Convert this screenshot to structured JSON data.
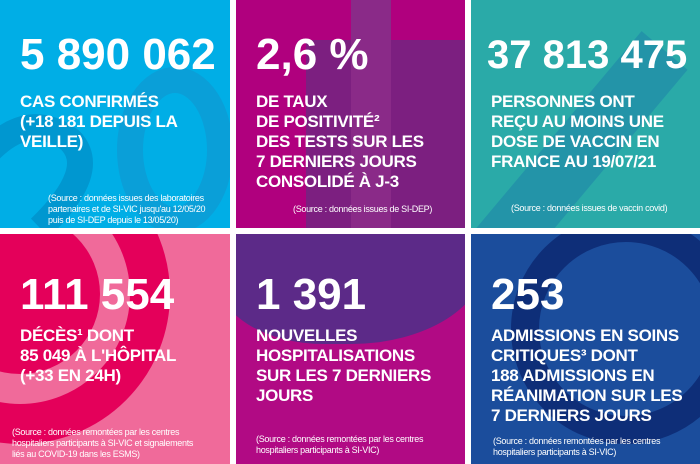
{
  "panels": [
    {
      "value": "5 890 062",
      "label": "CAS CONFIRMÉS\n(+18 181 DEPUIS LA\nVEILLE)",
      "source": "(Source : données issues des laboratoires\npartenaires et de SI-VIC jusqu'au 12/05/20\npuis de SI-DEP depuis le 13/05/20)",
      "color": "#00aee6"
    },
    {
      "value": "2,6 %",
      "label": "DE TAUX\nDE POSITIVITÉ²\nDES TESTS SUR LES\n7 DERNIERS JOURS\nCONSOLIDÉ À J-3",
      "source": "(Source : données issues de SI-DEP)",
      "color": "#b0007e"
    },
    {
      "value": "37 813 475",
      "label": "PERSONNES ONT\nREÇU AU MOINS UNE\nDOSE DE VACCIN EN\nFRANCE AU 19/07/21",
      "source": "(Source : données issues de vaccin covid)",
      "color": "#2aaaa8"
    },
    {
      "value": "111 554",
      "label": "DÉCÈS¹ DONT\n85 049 À L'HÔPITAL\n(+33 EN 24H)",
      "source": "(Source : données remontées par les centres\nhospitaliers participants à SI-VIC et signalements\nliés au COVID-19 dans les ESMS)",
      "color": "#e4005a"
    },
    {
      "value": "1 391",
      "label": "NOUVELLES\nHOSPITALISATIONS\nSUR LES 7 DERNIERS\nJOURS",
      "source": "(Source : données remontées par les centres\nhospitaliers participants à SI-VIC)",
      "color": "#b10a84"
    },
    {
      "value": "253",
      "label": "ADMISSIONS EN SOINS\nCRITIQUES³ DONT\n188 ADMISSIONS EN\nRÉANIMATION SUR LES\n7 DERNIERS JOURS",
      "source": "(Source : données remontées par les centres\nhospitaliers participants à SI-VIC)",
      "color": "#1b4d9c"
    }
  ]
}
